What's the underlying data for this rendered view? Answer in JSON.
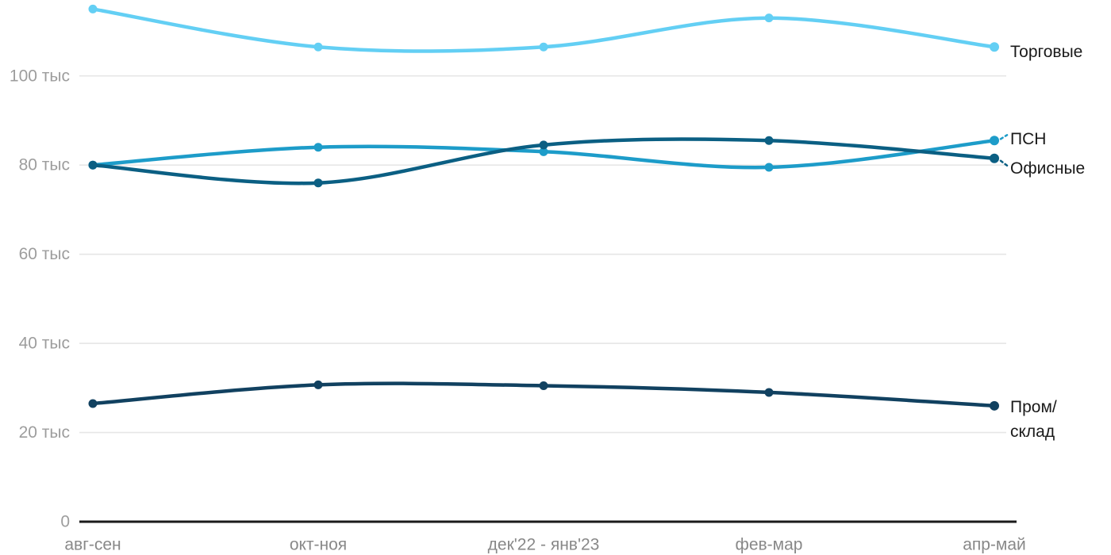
{
  "chart_data": {
    "type": "line",
    "title": "",
    "xlabel": "",
    "ylabel": "",
    "unit_suffix": "тыс",
    "categories": [
      "авг-сен",
      "окт-ноя",
      "дек'22 - янв'23",
      "фев-мар",
      "апр-май"
    ],
    "y_ticks": [
      {
        "value": 0,
        "label": "0"
      },
      {
        "value": 20,
        "label": "20 тыс"
      },
      {
        "value": 40,
        "label": "40 тыс"
      },
      {
        "value": 60,
        "label": "60 тыс"
      },
      {
        "value": 80,
        "label": "80 тыс"
      },
      {
        "value": 100,
        "label": "100 тыс"
      }
    ],
    "ylim": [
      0,
      117
    ],
    "grid": true,
    "legend_position": "right-of-line-end",
    "series": [
      {
        "name": "Торговые",
        "color": "#63cff4",
        "values": [
          115,
          106.5,
          106.5,
          113,
          106.5
        ],
        "label_lines": [
          "Торговые"
        ],
        "label_dy": 6,
        "leader": "none"
      },
      {
        "name": "ПСН",
        "color": "#1d9cc9",
        "values": [
          80,
          84,
          83,
          79.5,
          85.5
        ],
        "label_lines": [
          "ПСН"
        ],
        "label_dy": -2,
        "leader": "up"
      },
      {
        "name": "Офисные",
        "color": "#0b5f83",
        "values": [
          80,
          76,
          84.5,
          85.5,
          81.5
        ],
        "label_lines": [
          "Офисные"
        ],
        "label_dy": 13,
        "leader": "down"
      },
      {
        "name": "Пром/склад",
        "color": "#114160",
        "values": [
          26.5,
          30.7,
          30.5,
          29,
          26
        ],
        "label_lines": [
          "Пром/",
          "склад"
        ],
        "label_dy": 2,
        "leader": "none"
      }
    ]
  },
  "colors": {
    "background": "#ffffff",
    "gridline": "#e6e6e6",
    "axis_line": "#1a1a1a",
    "y_tick_text": "#9d9d9d",
    "x_tick_text": "#888888",
    "series_label_text": "#1a1a1a"
  }
}
